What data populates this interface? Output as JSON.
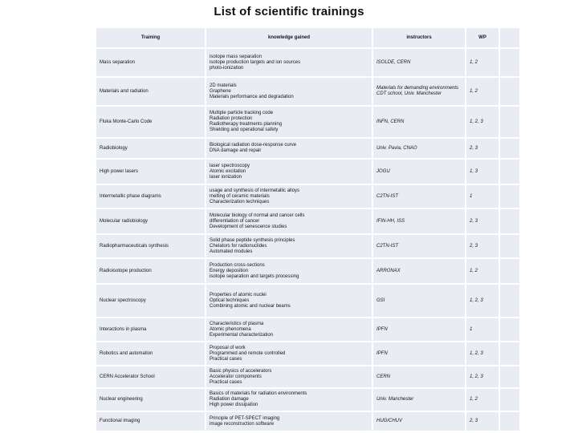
{
  "title": "List of scientific trainings",
  "colors": {
    "cell_background": "#e9ecf3",
    "page_background": "#ffffff",
    "text": "#16161d"
  },
  "table": {
    "headers": {
      "training": "Training",
      "knowledge": "knowledge gained",
      "instructors": "instructors",
      "wp": "WP",
      "extra": ""
    },
    "rows": [
      {
        "training": "Mass separation",
        "knowledge": [
          "isotope mass separation",
          "isotope production targets and ion sources",
          "photo-ionization"
        ],
        "instructors": [
          "ISOLDE, CERN"
        ],
        "wp": "1, 2"
      },
      {
        "training": "Materials and radiation",
        "knowledge": [
          "2D materials",
          "Graphene",
          "Materials performance and degradation"
        ],
        "instructors": [
          "Materials for demanding environments",
          "CDT school, Univ. Manchester"
        ],
        "wp": "1, 2"
      },
      {
        "training": "Fluka Monte-Carlo Code",
        "knowledge": [
          "Multiple particle tracking code",
          "Radiation protection",
          "Radiotherapy treatments planning",
          "Shielding and operational safety"
        ],
        "instructors": [
          "INFN, CERN"
        ],
        "wp": "1, 2, 3"
      },
      {
        "training": "Radiobiology",
        "knowledge": [
          "Biological radiation dose-response curve",
          "DNA damage and repair"
        ],
        "instructors": [
          "Univ. Pavia, CNAO"
        ],
        "wp": "2, 3"
      },
      {
        "training": "High power lasers",
        "knowledge": [
          "laser spectroscopy",
          "Atomic excitation",
          "laser ionization"
        ],
        "instructors": [
          "JOGU"
        ],
        "wp": "1, 3"
      },
      {
        "training": "Intermetallic phase diagrams",
        "knowledge": [
          "usage and synthesis of intermetallic alloys",
          "melting of ceramic materials",
          "Characterization techniques"
        ],
        "instructors": [
          "C2TN-IST"
        ],
        "wp": "1"
      },
      {
        "training": "Molecular radiobiology",
        "knowledge": [
          "Molecular biology of normal and cancer cells",
          "differentiation of cancer",
          "Development of senescence studies"
        ],
        "instructors": [
          "IFIN-HH, ISS"
        ],
        "wp": "2, 3"
      },
      {
        "training": "Radiopharmaceuticals synthesis",
        "knowledge": [
          "Solid phase peptide synthesis principles",
          "Chelators for radionuclides",
          "Automated modules"
        ],
        "instructors": [
          "C2TN-IST"
        ],
        "wp": "2, 3"
      },
      {
        "training": "Radioisotope production",
        "knowledge": [
          "Production cross-sections",
          "Energy deposition",
          "isotope separation and targets processing"
        ],
        "instructors": [
          "ARRONAX"
        ],
        "wp": "1, 2"
      },
      {
        "training": "Nuclear spectroscopy",
        "knowledge": [
          "Properties of atomic nuclei",
          "Optical techniques",
          "Combining atomic and nuclear beams"
        ],
        "instructors": [
          "GSI"
        ],
        "wp": "1, 2, 3"
      },
      {
        "training": "Interactions in plasma",
        "knowledge": [
          "Characteristics of plasma",
          "Atomic phenomena",
          "Experimental characterization"
        ],
        "instructors": [
          "IPFN"
        ],
        "wp": "1"
      },
      {
        "training": "Robotics and automation",
        "knowledge": [
          "Proposal of work",
          "Programmed and remote controlled",
          "Practical cases"
        ],
        "instructors": [
          "IPFN"
        ],
        "wp": "1, 2, 3"
      },
      {
        "training": "CERN Accelerator School",
        "knowledge": [
          "Basic physics of accelerators",
          "Accelerator components",
          "Practical cases"
        ],
        "instructors": [
          "CERN"
        ],
        "wp": "1, 2, 3"
      },
      {
        "training": "Nuclear engineering",
        "knowledge": [
          "Basics of materials for radiation environments",
          "Radiation damage",
          "High power dissipation"
        ],
        "instructors": [
          "Univ. Manchester"
        ],
        "wp": "1, 2"
      },
      {
        "training": "Functional imaging",
        "knowledge": [
          "Principle of PET-SPECT imaging",
          "image reconstruction software"
        ],
        "instructors": [
          "HUG/CHUV"
        ],
        "wp": "2, 3"
      }
    ]
  }
}
